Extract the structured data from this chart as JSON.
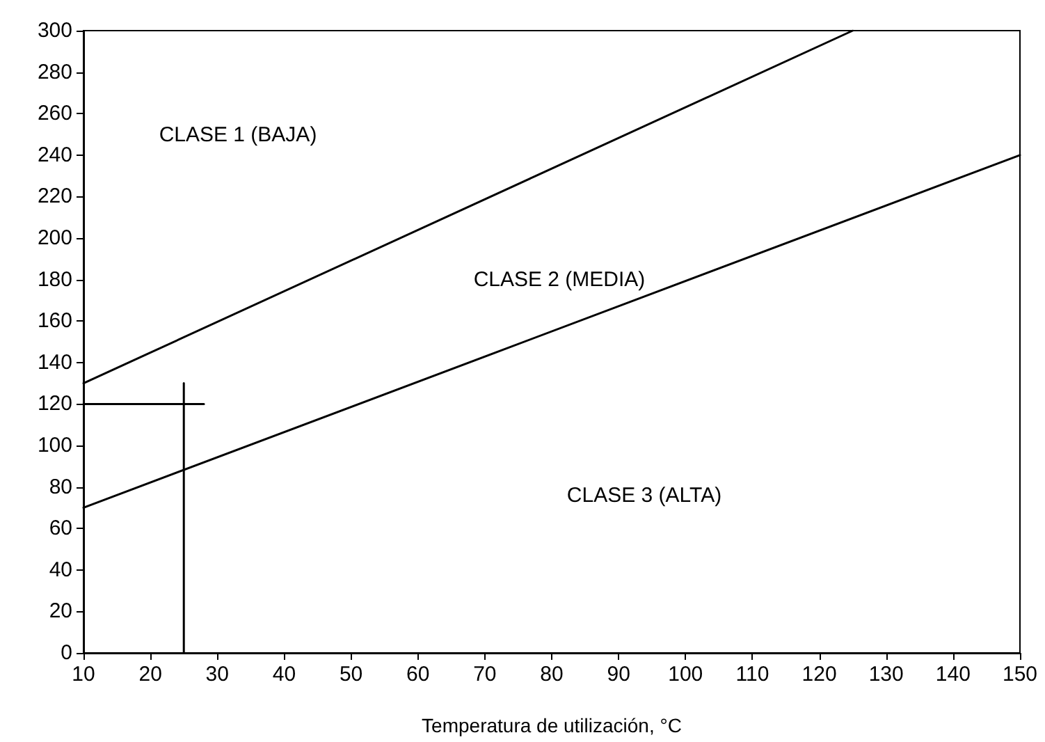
{
  "chart_data": {
    "type": "line",
    "xlabel": "Temperatura de utilización, °C",
    "series": [
      {
        "color": "#000000",
        "x": [
          10,
          125
        ],
        "values": [
          130,
          300
        ]
      },
      {
        "color": "#000000",
        "x": [
          10,
          150
        ],
        "values": [
          70,
          240
        ]
      },
      {
        "color": "#000000",
        "x": [
          25,
          25
        ],
        "values": [
          0,
          130
        ]
      },
      {
        "color": "#000000",
        "x": [
          10,
          28
        ],
        "values": [
          120,
          120
        ]
      }
    ],
    "xlim": [
      10,
      150
    ],
    "xticks": [
      10,
      20,
      30,
      40,
      50,
      60,
      70,
      80,
      90,
      100,
      110,
      120,
      130,
      140,
      150
    ],
    "ylim": [
      0,
      300
    ],
    "yticks": [
      0,
      20,
      40,
      60,
      80,
      100,
      120,
      140,
      160,
      180,
      200,
      220,
      240,
      260,
      280,
      300
    ],
    "grid": false,
    "marker": "none",
    "line_style": "solid",
    "annotations": [
      "CLASE 1 (BAJA)",
      "CLASE 2 (MEDIA)",
      "CLASE 3 (ALTA)"
    ]
  }
}
